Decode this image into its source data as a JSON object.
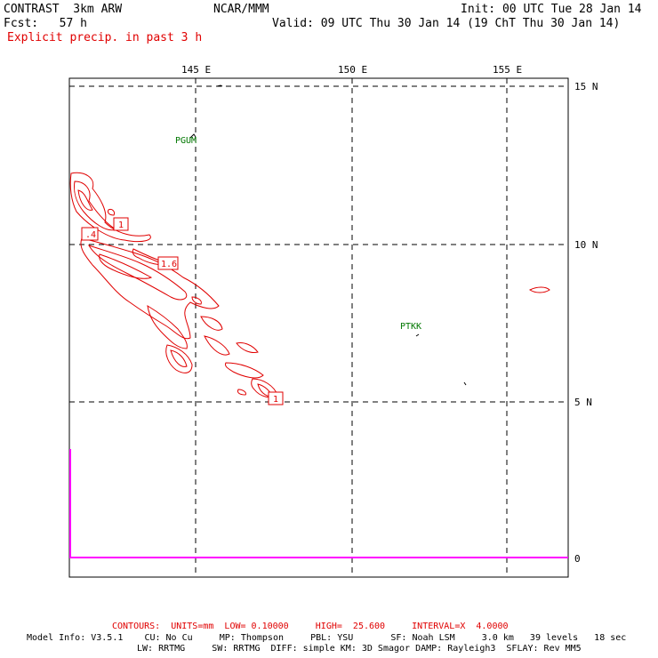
{
  "header": {
    "model": "CONTRAST  3km ARW",
    "org": "NCAR/MMM",
    "init": "Init: 00 UTC Tue 28 Jan 14",
    "fcst": "Fcst:   57 h",
    "valid": "Valid: 09 UTC Thu 30 Jan 14 (19 ChT Thu 30 Jan 14)",
    "field": "Explicit precip. in past 3 h"
  },
  "map": {
    "lon_labels": [
      "145 E",
      "150 E",
      "155 E"
    ],
    "lat_labels": [
      "15 N",
      "10 N",
      "5 N"
    ],
    "bottom_label": "0",
    "stations": [
      "PGUM",
      "PTKK"
    ],
    "contour_labels": [
      "1",
      ".4",
      "1.6",
      "1"
    ],
    "colors": {
      "contour": "#e00000",
      "station": "#007700",
      "timeseries": "#ff00ff",
      "grid": "#000000"
    }
  },
  "footer": {
    "contours": "CONTOURS:  UNITS=mm  LOW= 0.10000     HIGH=  25.600     INTERVAL=X  4.0000",
    "model_info": "Model Info: V3.5.1    CU: No Cu     MP: Thompson     PBL: YSU       SF: Noah LSM     3.0 km   39 levels   18 sec",
    "model_info2": "LW: RRTMG     SW: RRTMG  DIFF: simple KM: 3D Smagor DAMP: Rayleigh3  SFLAY: Rev MM5"
  }
}
